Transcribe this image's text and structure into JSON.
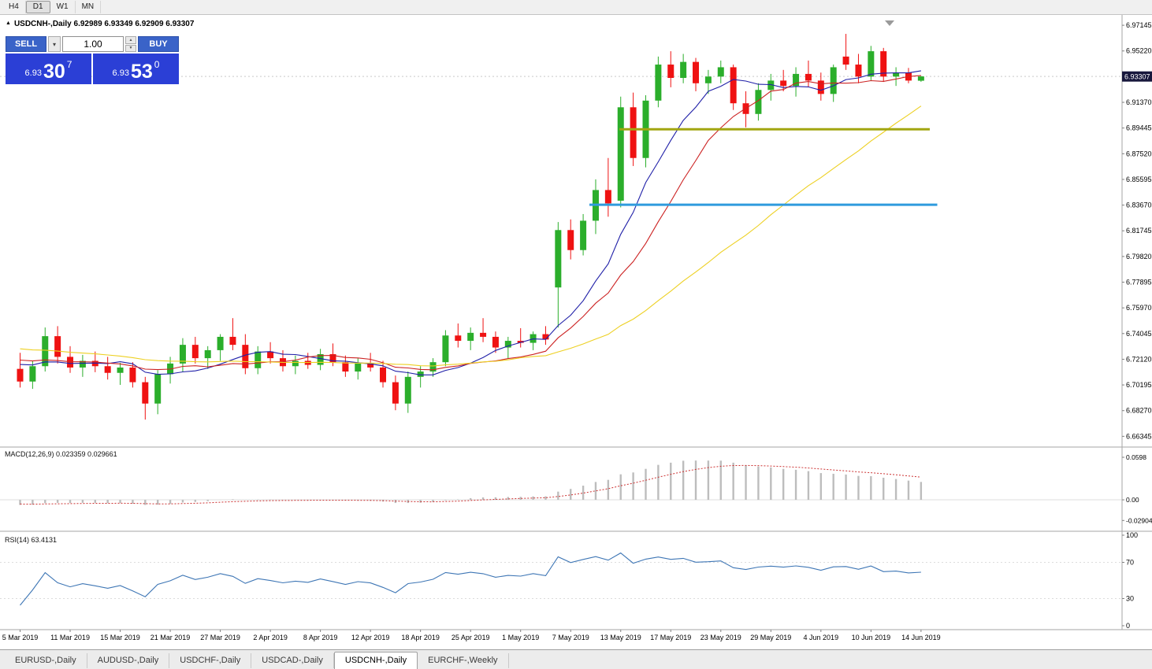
{
  "toolbar": {
    "timeframes": [
      {
        "label": "H4",
        "active": false
      },
      {
        "label": "D1",
        "active": true
      },
      {
        "label": "W1",
        "active": false
      },
      {
        "label": "MN",
        "active": false
      }
    ]
  },
  "chart": {
    "title": "USDCNH-,Daily 6.92989 6.93349 6.92909 6.93307"
  },
  "trade_widget": {
    "sell_label": "SELL",
    "buy_label": "BUY",
    "volume": "1.00",
    "sell_price": {
      "prefix": "6.93",
      "pips": "30",
      "point": "7"
    },
    "buy_price": {
      "prefix": "6.93",
      "pips": "53",
      "point": "0"
    },
    "panel_color": "#2B3FD6",
    "button_color": "#3A63C8"
  },
  "tabs": [
    {
      "label": "EURUSD-,Daily",
      "active": false
    },
    {
      "label": "AUDUSD-,Daily",
      "active": false
    },
    {
      "label": "USDCHF-,Daily",
      "active": false
    },
    {
      "label": "USDCAD-,Daily",
      "active": false
    },
    {
      "label": "USDCNH-,Daily",
      "active": true
    },
    {
      "label": "EURCHF-,Weekly",
      "active": false
    }
  ],
  "chart_data": {
    "type": "candlestick",
    "symbol": "USDCNH-",
    "timeframe": "Daily",
    "last_price": "6.93307",
    "ylim": [
      6.656,
      6.978
    ],
    "price_ticks": [
      "6.97145",
      "6.95220",
      "6.93295",
      "6.91370",
      "6.89445",
      "6.87520",
      "6.85595",
      "6.83670",
      "6.81745",
      "6.79820",
      "6.77895",
      "6.75970",
      "6.74045",
      "6.72120",
      "6.70195",
      "6.68270",
      "6.66345"
    ],
    "colors": {
      "bull": "#2BAE2B",
      "bear": "#EF1212",
      "background": "#FFFFFF",
      "axis_text": "#000000"
    },
    "candles": [
      [
        "2019.03.05",
        6.714,
        6.726,
        6.7,
        6.7045
      ],
      [
        "2019.03.06",
        6.7045,
        6.72,
        6.699,
        6.716
      ],
      [
        "2019.03.07",
        6.716,
        6.745,
        6.712,
        6.7385
      ],
      [
        "2019.03.08",
        6.7385,
        6.746,
        6.718,
        6.723
      ],
      [
        "2019.03.11",
        6.723,
        6.731,
        6.711,
        6.715
      ],
      [
        "2019.03.12",
        6.715,
        6.7245,
        6.708,
        6.72
      ],
      [
        "2019.03.13",
        6.72,
        6.727,
        6.7115,
        6.716
      ],
      [
        "2019.03.14",
        6.716,
        6.723,
        6.706,
        6.711
      ],
      [
        "2019.03.15",
        6.711,
        6.7185,
        6.702,
        6.715
      ],
      [
        "2019.03.18",
        6.715,
        6.719,
        6.7,
        6.704
      ],
      [
        "2019.03.19",
        6.704,
        6.708,
        6.676,
        6.688
      ],
      [
        "2019.03.20",
        6.688,
        6.713,
        6.68,
        6.71
      ],
      [
        "2019.03.21",
        6.71,
        6.723,
        6.703,
        6.718
      ],
      [
        "2019.03.22",
        6.718,
        6.737,
        6.712,
        6.732
      ],
      [
        "2019.03.25",
        6.732,
        6.738,
        6.718,
        6.722
      ],
      [
        "2019.03.26",
        6.722,
        6.731,
        6.714,
        6.728
      ],
      [
        "2019.03.27",
        6.728,
        6.74,
        6.72,
        6.738
      ],
      [
        "2019.03.28",
        6.738,
        6.752,
        6.728,
        6.732
      ],
      [
        "2019.03.29",
        6.732,
        6.74,
        6.71,
        6.7145
      ],
      [
        "2019.04.01",
        6.7145,
        6.731,
        6.71,
        6.727
      ],
      [
        "2019.04.02",
        6.727,
        6.734,
        6.718,
        6.722
      ],
      [
        "2019.04.03",
        6.722,
        6.728,
        6.712,
        6.716
      ],
      [
        "2019.04.04",
        6.716,
        6.724,
        6.71,
        6.72
      ],
      [
        "2019.04.05",
        6.72,
        6.726,
        6.714,
        6.717
      ],
      [
        "2019.04.08",
        6.717,
        6.729,
        6.713,
        6.725
      ],
      [
        "2019.04.09",
        6.725,
        6.733,
        6.716,
        6.719
      ],
      [
        "2019.04.10",
        6.719,
        6.724,
        6.708,
        6.712
      ],
      [
        "2019.04.11",
        6.712,
        6.722,
        6.706,
        6.718
      ],
      [
        "2019.04.12",
        6.718,
        6.726,
        6.712,
        6.715
      ],
      [
        "2019.04.15",
        6.715,
        6.72,
        6.7,
        6.704
      ],
      [
        "2019.04.16",
        6.704,
        6.709,
        6.683,
        6.688
      ],
      [
        "2019.04.17",
        6.688,
        6.712,
        6.681,
        6.708
      ],
      [
        "2019.04.18",
        6.708,
        6.716,
        6.7,
        6.712
      ],
      [
        "2019.04.22",
        6.712,
        6.722,
        6.708,
        6.719
      ],
      [
        "2019.04.23",
        6.719,
        6.743,
        6.716,
        6.739
      ],
      [
        "2019.04.24",
        6.739,
        6.748,
        6.73,
        6.735
      ],
      [
        "2019.04.25",
        6.735,
        6.745,
        6.728,
        6.741
      ],
      [
        "2019.04.26",
        6.741,
        6.752,
        6.734,
        6.738
      ],
      [
        "2019.04.29",
        6.738,
        6.742,
        6.726,
        6.73
      ],
      [
        "2019.04.30",
        6.73,
        6.738,
        6.722,
        6.735
      ],
      [
        "2019.05.01",
        6.735,
        6.7445,
        6.73,
        6.7335
      ],
      [
        "2019.05.02",
        6.7335,
        6.742,
        6.728,
        6.74
      ],
      [
        "2019.05.03",
        6.74,
        6.746,
        6.732,
        6.736
      ],
      [
        "2019.05.06",
        6.775,
        6.824,
        6.745,
        6.818
      ],
      [
        "2019.05.07",
        6.818,
        6.826,
        6.796,
        6.803
      ],
      [
        "2019.05.08",
        6.803,
        6.83,
        6.799,
        6.825
      ],
      [
        "2019.05.09",
        6.825,
        6.856,
        6.815,
        6.848
      ],
      [
        "2019.05.10",
        6.848,
        6.872,
        6.828,
        6.838
      ],
      [
        "2019.05.13",
        6.84,
        6.918,
        6.835,
        6.91
      ],
      [
        "2019.05.14",
        6.91,
        6.921,
        6.866,
        6.872
      ],
      [
        "2019.05.15",
        6.872,
        6.919,
        6.865,
        6.915
      ],
      [
        "2019.05.16",
        6.915,
        6.948,
        6.91,
        6.942
      ],
      [
        "2019.05.17",
        6.942,
        6.952,
        6.925,
        6.932
      ],
      [
        "2019.05.20",
        6.932,
        6.95,
        6.928,
        6.944
      ],
      [
        "2019.05.21",
        6.944,
        6.947,
        6.922,
        6.928
      ],
      [
        "2019.05.22",
        6.928,
        6.938,
        6.92,
        6.933
      ],
      [
        "2019.05.23",
        6.933,
        6.945,
        6.928,
        6.94
      ],
      [
        "2019.05.24",
        6.94,
        6.942,
        6.908,
        6.913
      ],
      [
        "2019.05.27",
        6.913,
        6.922,
        6.895,
        6.905
      ],
      [
        "2019.05.28",
        6.905,
        6.928,
        6.9,
        6.923
      ],
      [
        "2019.05.29",
        6.923,
        6.935,
        6.915,
        6.93
      ],
      [
        "2019.05.30",
        6.93,
        6.938,
        6.922,
        6.926
      ],
      [
        "2019.05.31",
        6.926,
        6.94,
        6.918,
        6.935
      ],
      [
        "2019.06.03",
        6.935,
        6.945,
        6.925,
        6.93
      ],
      [
        "2019.06.04",
        6.93,
        6.936,
        6.915,
        6.92
      ],
      [
        "2019.06.05",
        6.92,
        6.942,
        6.914,
        6.94
      ],
      [
        "2019.06.06",
        6.948,
        6.965,
        6.938,
        6.942
      ],
      [
        "2019.06.07",
        6.942,
        6.95,
        6.928,
        6.933
      ],
      [
        "2019.06.10",
        6.933,
        6.956,
        6.93,
        6.952
      ],
      [
        "2019.06.11",
        6.952,
        6.9545,
        6.929,
        6.933
      ],
      [
        "2019.06.12",
        6.933,
        6.94,
        6.926,
        6.936
      ],
      [
        "2019.06.13",
        6.936,
        6.9395,
        6.928,
        6.93
      ],
      [
        "2019.06.14",
        6.9299,
        6.9335,
        6.9291,
        6.9331
      ]
    ],
    "date_ticks": [
      {
        "index": 0,
        "label": "5 Mar 2019"
      },
      {
        "index": 4,
        "label": "11 Mar 2019"
      },
      {
        "index": 8,
        "label": "15 Mar 2019"
      },
      {
        "index": 12,
        "label": "21 Mar 2019"
      },
      {
        "index": 16,
        "label": "27 Mar 2019"
      },
      {
        "index": 20,
        "label": "2 Apr 2019"
      },
      {
        "index": 24,
        "label": "8 Apr 2019"
      },
      {
        "index": 28,
        "label": "12 Apr 2019"
      },
      {
        "index": 32,
        "label": "18 Apr 2019"
      },
      {
        "index": 36,
        "label": "25 Apr 2019"
      },
      {
        "index": 40,
        "label": "1 May 2019"
      },
      {
        "index": 44,
        "label": "7 May 2019"
      },
      {
        "index": 48,
        "label": "13 May 2019"
      },
      {
        "index": 52,
        "label": "17 May 2019"
      },
      {
        "index": 56,
        "label": "23 May 2019"
      },
      {
        "index": 60,
        "label": "29 May 2019"
      },
      {
        "index": 64,
        "label": "4 Jun 2019"
      },
      {
        "index": 68,
        "label": "10 Jun 2019"
      },
      {
        "index": 72,
        "label": "14 Jun 2019"
      }
    ],
    "moving_averages": [
      {
        "name": "fast",
        "period": 8,
        "color": "#2020A8"
      },
      {
        "name": "medium",
        "period": 13,
        "color": "#CC2222"
      },
      {
        "name": "slow",
        "period": 30,
        "color": "#EDD022"
      }
    ],
    "hlines": [
      {
        "price": 6.8935,
        "color": "#A2A610",
        "from_index": 47.9,
        "to_index": 72.7,
        "width": 3
      },
      {
        "price": 6.837,
        "color": "#2F9BDD",
        "from_index": 45.5,
        "to_index": 73.3,
        "width": 3
      }
    ],
    "macd": {
      "label": "MACD(12,26,9)",
      "value": "0.023359",
      "signal_value": "0.029661",
      "params": [
        12,
        26,
        9
      ],
      "axis_labels": [
        "0.0598",
        "0.00",
        "-0.029049"
      ],
      "ylim": [
        -0.042,
        0.072
      ],
      "histogram_color": "#BDBDBD",
      "signal_color": "#CC3333"
    },
    "rsi": {
      "label": "RSI(14)",
      "value": "63.4131",
      "period": 14,
      "axis_labels": [
        "100",
        "70",
        "30",
        "0"
      ],
      "levels": [
        70,
        30
      ],
      "color": "#3E76B5"
    }
  }
}
